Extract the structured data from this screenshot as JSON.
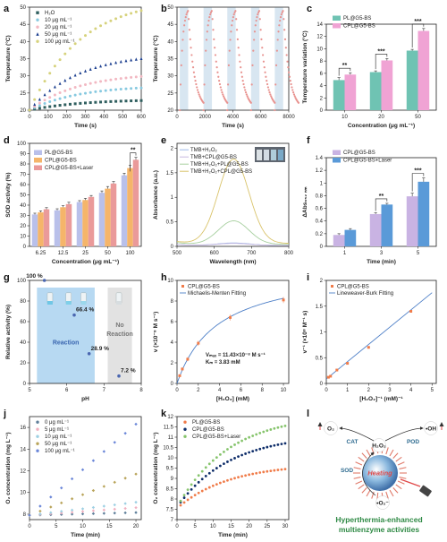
{
  "figure": {
    "panels": [
      "a",
      "b",
      "c",
      "d",
      "e",
      "f",
      "g",
      "h",
      "i",
      "j",
      "k",
      "l"
    ]
  },
  "chart_data": [
    {
      "id": "a",
      "type": "scatter",
      "xlabel": "Time (s)",
      "ylabel": "Temperature (°C)",
      "xlim": [
        0,
        600
      ],
      "ylim": [
        20,
        50
      ],
      "xticks": [
        0,
        100,
        200,
        300,
        400,
        500,
        600
      ],
      "yticks": [
        20,
        25,
        30,
        35,
        40,
        45,
        50
      ],
      "legend_position": "top-left",
      "series": [
        {
          "name": "H₂O",
          "color": "#2f5f5f",
          "marker": "square",
          "kind": "growth",
          "start": 20,
          "end": 22.8,
          "k": 2.2,
          "points": 23
        },
        {
          "name": "10  μg mL⁻¹",
          "color": "#87c9e0",
          "marker": "circle",
          "kind": "growth",
          "start": 20,
          "end": 26.5,
          "k": 2.3,
          "points": 23
        },
        {
          "name": "20  μg mL⁻¹",
          "color": "#f2b8c2",
          "marker": "circle",
          "kind": "growth",
          "start": 20,
          "end": 29.8,
          "k": 2.3,
          "points": 23
        },
        {
          "name": "50  μg mL⁻¹",
          "color": "#1c3f8f",
          "marker": "triangle",
          "kind": "growth",
          "start": 20,
          "end": 35.0,
          "k": 2.3,
          "points": 23
        },
        {
          "name": "100  μg mL⁻¹",
          "color": "#d6d27c",
          "marker": "circle",
          "kind": "growth",
          "start": 20,
          "end": 49.0,
          "k": 2.2,
          "points": 23
        }
      ]
    },
    {
      "id": "b",
      "type": "line",
      "xlabel": "Time (s)",
      "ylabel": "Temperature (°C)",
      "xlim": [
        0,
        8000
      ],
      "ylim": [
        20,
        50
      ],
      "xticks": [
        0,
        2000,
        4000,
        6000,
        8000
      ],
      "yticks": [
        20,
        25,
        30,
        35,
        40,
        45,
        50
      ],
      "cycles": 5,
      "period": 1700,
      "heat_time": 600,
      "t_min": 20,
      "t_max": 49,
      "color": "#e8928f",
      "band_color": "#d8e6f1"
    },
    {
      "id": "c",
      "type": "bar",
      "xlabel": "Concentration (μg mL⁻¹)",
      "ylabel": "Temperature variation (°C)",
      "ylim": [
        0,
        14
      ],
      "yticks": [
        0,
        2,
        4,
        6,
        8,
        10,
        12,
        14
      ],
      "categories": [
        "10",
        "20",
        "50"
      ],
      "legend_position": "top-left",
      "series": [
        {
          "name": "PL@G5-BS",
          "color": "#6fc3b3",
          "values": [
            4.9,
            6.2,
            9.7
          ],
          "errors": [
            0.4,
            0.2,
            0.2
          ]
        },
        {
          "name": "CPL@G5-BS",
          "color": "#f0a3d4",
          "values": [
            5.8,
            8.1,
            12.9
          ],
          "errors": [
            0.3,
            0.3,
            0.4
          ]
        }
      ],
      "significance": [
        "**",
        "***",
        "***"
      ]
    },
    {
      "id": "d",
      "type": "bar",
      "xlabel": "Concentration (μg mL⁻¹)",
      "ylabel": "SOD activity (%)",
      "ylim": [
        0,
        100
      ],
      "yticks": [
        0,
        10,
        20,
        30,
        40,
        50,
        60,
        70,
        80,
        90,
        100
      ],
      "categories": [
        "6.25",
        "12.5",
        "25",
        "50",
        "100"
      ],
      "legend_position": "top-left",
      "series": [
        {
          "name": "PL@G5-BS",
          "color": "#b9c0ea",
          "values": [
            31,
            35,
            43,
            52,
            69
          ],
          "errors": [
            1.2,
            1.5,
            1.4,
            1.8,
            2.0
          ]
        },
        {
          "name": "CPL@G5-BS",
          "color": "#f5b56a",
          "values": [
            33,
            38,
            45,
            56,
            76
          ],
          "errors": [
            1.5,
            1.4,
            1.6,
            2.1,
            2.5
          ]
        },
        {
          "name": "CPL@G5-BS+Laser",
          "color": "#ea9a9a",
          "values": [
            36,
            41,
            48,
            61,
            84
          ],
          "errors": [
            1.6,
            1.8,
            1.4,
            2.0,
            2.4
          ]
        }
      ],
      "significance": [
        "",
        "",
        "",
        "",
        "**"
      ]
    },
    {
      "id": "e",
      "type": "line",
      "xlabel": "Wavelength (nm)",
      "ylabel": "Absorbance (a.u.)",
      "xlim": [
        500,
        800
      ],
      "ylim": [
        0,
        2.1
      ],
      "xticks": [
        500,
        600,
        700,
        800
      ],
      "yticks": [
        0.0,
        0.5,
        1.0,
        1.5,
        2.0
      ],
      "legend_position": "top-left",
      "series": [
        {
          "name": "TMB+H₂O₂",
          "color": "#9db8e8",
          "peak": 0.05,
          "center": 652,
          "width": 60,
          "base": 0.02
        },
        {
          "name": "TMB+CPL@G5-BS",
          "color": "#c7b8e0",
          "peak": 0.04,
          "center": 652,
          "width": 60,
          "base": 0.02
        },
        {
          "name": "TMB+H₂O₂+PL@G5-BS",
          "color": "#a8d0a0",
          "peak": 0.48,
          "center": 652,
          "width": 58,
          "base": 0.04
        },
        {
          "name": "TMB+H₂O₂+CPL@G5-BS",
          "color": "#d9c36a",
          "peak": 1.72,
          "center": 652,
          "width": 58,
          "base": 0.06
        }
      ]
    },
    {
      "id": "f",
      "type": "bar",
      "xlabel": "Time (min)",
      "ylabel": "ΔAbs₆₅₂ ₙₘ",
      "ylim": [
        0,
        1.4
      ],
      "yticks": [
        0.0,
        0.2,
        0.4,
        0.6,
        0.8,
        1.0,
        1.2,
        1.4
      ],
      "categories": [
        "1",
        "3",
        "5"
      ],
      "legend_position": "top-left",
      "series": [
        {
          "name": "CPL@G5-BS",
          "color": "#c9b3e3",
          "values": [
            0.18,
            0.51,
            0.79
          ],
          "errors": [
            0.02,
            0.02,
            0.05
          ]
        },
        {
          "name": "CPL@G5-BS+Laser",
          "color": "#5a9ad8",
          "values": [
            0.26,
            0.66,
            1.02
          ],
          "errors": [
            0.02,
            0.02,
            0.06
          ]
        }
      ],
      "significance": [
        "",
        "**",
        "***"
      ]
    },
    {
      "id": "g",
      "type": "scatter",
      "xlabel": "pH",
      "ylabel": "Relative activity (%)",
      "xlim": [
        5,
        8
      ],
      "ylim": [
        0,
        100
      ],
      "xticks": [
        5,
        6,
        7,
        8
      ],
      "yticks": [
        0,
        20,
        40,
        60,
        80,
        100
      ],
      "x": [
        5.4,
        6.2,
        6.6,
        7.4
      ],
      "y": [
        100,
        66.4,
        28.9,
        7.2
      ],
      "point_labels": [
        "100 %",
        "66.4 %",
        "28.9 %",
        "7.2 %"
      ],
      "color": "#4a66b0",
      "regions": [
        {
          "label": "Reaction",
          "from": 5.2,
          "to": 6.75,
          "color": "#b7d9f2"
        },
        {
          "label": "No Reaction",
          "from": 7.1,
          "to": 7.75,
          "color": "#e2e2e2"
        }
      ]
    },
    {
      "id": "h",
      "type": "scatter",
      "xlabel": "[H₂O₂] (mM)",
      "ylabel": "v (×10⁻⁸ M s⁻¹)",
      "xlim": [
        0,
        10.5
      ],
      "ylim": [
        0,
        10
      ],
      "xticks": [
        0,
        2,
        4,
        6,
        8,
        10
      ],
      "yticks": [
        0,
        2,
        4,
        6,
        8,
        10
      ],
      "legend_position": "top-left",
      "legend": [
        "CPL@G5-BS",
        "Michaelis-Menten Fitting"
      ],
      "x": [
        0.25,
        0.5,
        1,
        2,
        5,
        10
      ],
      "y": [
        0.75,
        1.4,
        2.35,
        3.9,
        6.4,
        8.1
      ],
      "errors": [
        0.1,
        0.15,
        0.2,
        0.25,
        0.3,
        0.3
      ],
      "fit": {
        "vmax": 11.43,
        "km": 3.83
      },
      "annotation_vmax": "Vₘₐₓ = 11.43×10⁻⁸ M s⁻¹",
      "annotation_km": "Kₘ = 3.83 mM",
      "point_color": "#f07c4a",
      "fit_color": "#4d7fc7"
    },
    {
      "id": "i",
      "type": "scatter",
      "xlabel": "[H₂O₂]⁻¹ (mM)⁻¹",
      "ylabel": "v⁻¹ (×10⁸ M⁻¹ s)",
      "xlim": [
        0,
        5.2
      ],
      "ylim": [
        0,
        2.0
      ],
      "xticks": [
        0,
        1,
        2,
        3,
        4,
        5
      ],
      "yticks": [
        0.0,
        0.5,
        1.0,
        1.5,
        2.0
      ],
      "legend_position": "top-left",
      "legend": [
        "CPL@G5-BS",
        "Lineweaver-Burk Fitting"
      ],
      "x": [
        0.1,
        0.2,
        0.5,
        1,
        2,
        4
      ],
      "y": [
        0.12,
        0.14,
        0.26,
        0.39,
        0.7,
        1.4
      ],
      "fit": {
        "slope": 0.335,
        "intercept": 0.087,
        "to": 5
      },
      "point_color": "#f07c4a",
      "fit_color": "#4d7fc7"
    },
    {
      "id": "j",
      "type": "scatter",
      "xlabel": "Time (min)",
      "ylabel": "O₂ concentration (mg L⁻¹)",
      "xlim": [
        0,
        21
      ],
      "ylim": [
        7.5,
        17
      ],
      "xticks": [
        0,
        5,
        10,
        15,
        20
      ],
      "yticks": [
        8,
        10,
        12,
        14,
        16
      ],
      "legend_position": "top-left",
      "series": [
        {
          "name": "0  μg mL⁻¹",
          "color": "#5f7f9a",
          "start": 7.9,
          "end": 8.15
        },
        {
          "name": "5  μg mL⁻¹",
          "color": "#f0b0c0",
          "start": 7.9,
          "end": 8.6
        },
        {
          "name": "10  μg mL⁻¹",
          "color": "#9dd0e3",
          "start": 7.9,
          "end": 9.1
        },
        {
          "name": "50  μg mL⁻¹",
          "color": "#b9a45a",
          "start": 7.9,
          "end": 11.7
        },
        {
          "name": "100  μg mL⁻¹",
          "color": "#6a86d8",
          "start": 7.9,
          "end": 16.3
        }
      ],
      "times": [
        0,
        2,
        4,
        6,
        8,
        10,
        12,
        14,
        16,
        18,
        20
      ]
    },
    {
      "id": "k",
      "type": "scatter",
      "xlabel": "Time (min)",
      "ylabel": "O₂ concentration (mg L⁻¹)",
      "xlim": [
        0,
        31
      ],
      "ylim": [
        7,
        12
      ],
      "xticks": [
        0,
        5,
        10,
        15,
        20,
        25,
        30
      ],
      "yticks": [
        7.0,
        7.5,
        8.0,
        8.5,
        9.0,
        9.5,
        10.0,
        10.5,
        11.0,
        11.5,
        12.0
      ],
      "legend_position": "top-left",
      "series": [
        {
          "name": "PL@G5-BS",
          "color": "#f07c4a",
          "start": 7.55,
          "end": 9.45
        },
        {
          "name": "CPL@G5-BS",
          "color": "#0f2e6a",
          "start": 7.6,
          "end": 10.7
        },
        {
          "name": "CPL@G5-BS+Laser",
          "color": "#86c46c",
          "start": 7.6,
          "end": 11.55
        }
      ],
      "points_per_series": 30
    }
  ],
  "panel_l": {
    "nodes": [
      "O₂",
      "•OH",
      "H₂O₂",
      "•O₂⁻"
    ],
    "enzymes": [
      "CAT",
      "POD",
      "SOD"
    ],
    "center_label": "Heating",
    "caption_line1": "Hyperthermia-enhanced",
    "caption_line2": "multienzyme activities",
    "caption_color": "#2f8a45"
  }
}
